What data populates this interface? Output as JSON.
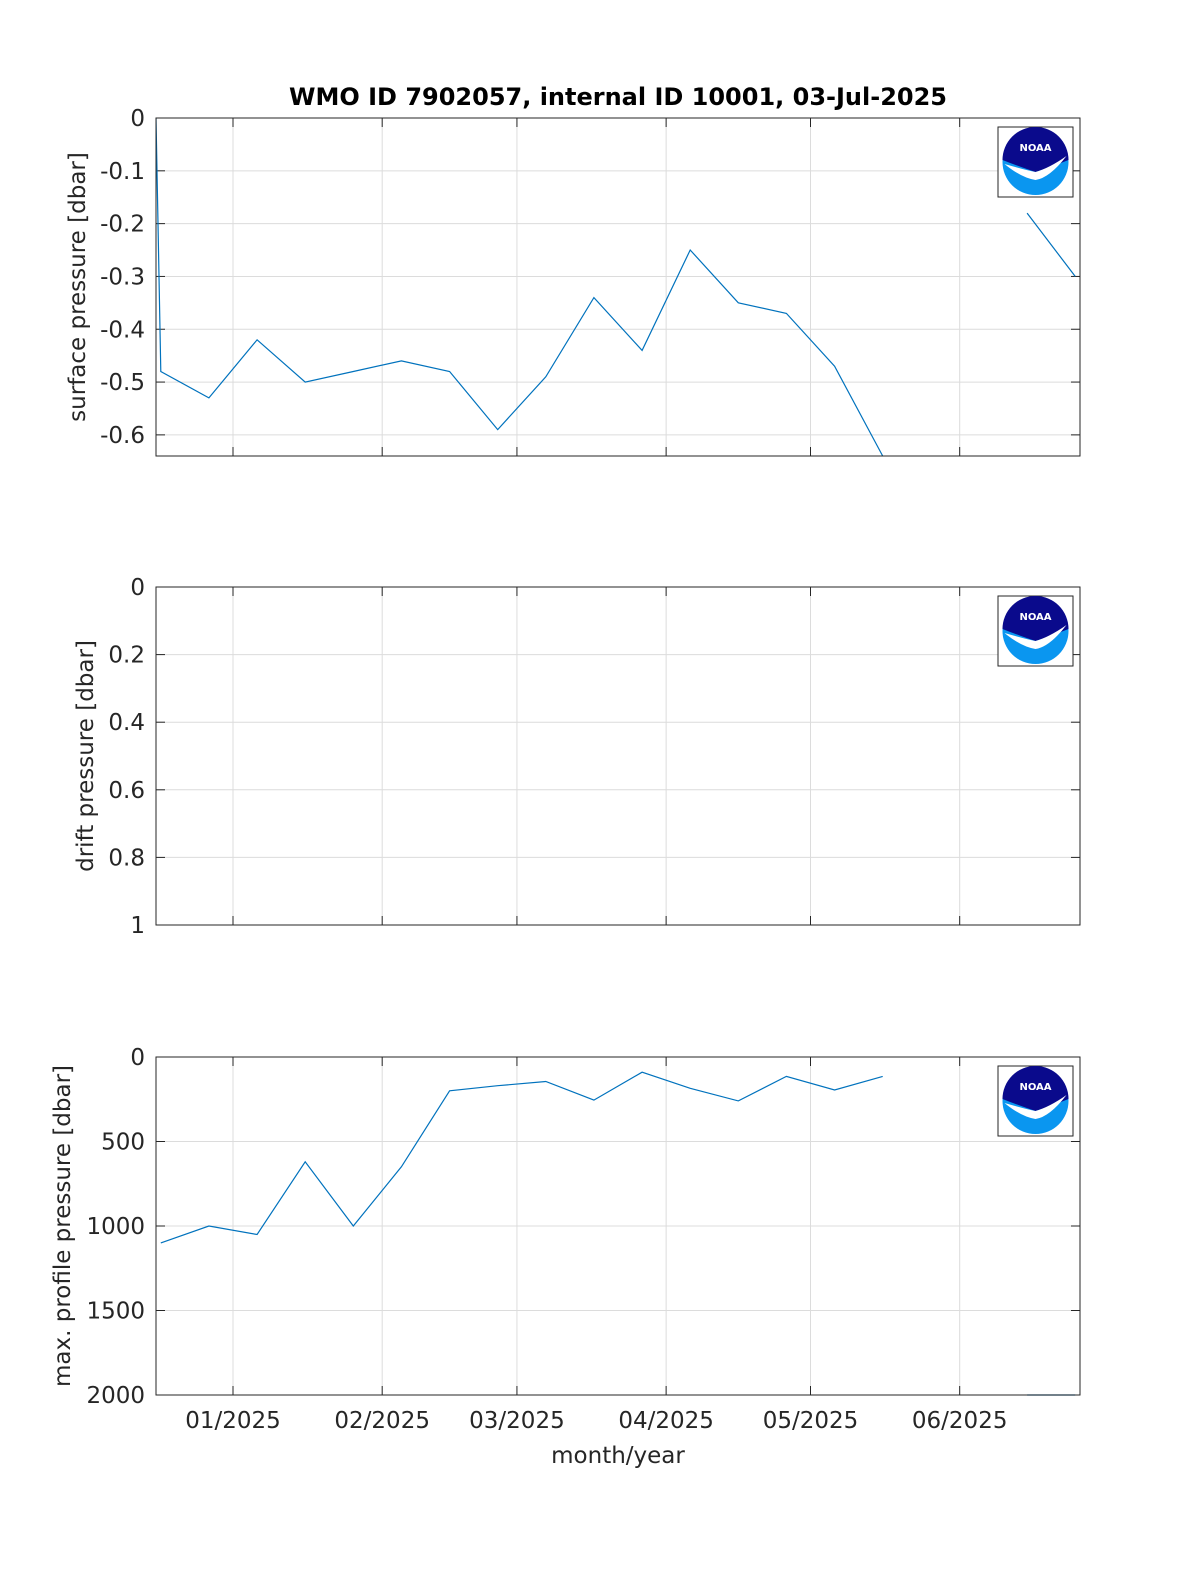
{
  "title": "WMO ID 7902057, internal ID 10001, 03-Jul-2025",
  "colors": {
    "series": "#0072BD",
    "axis": "#262626",
    "grid": "#dcdcdc",
    "noaa_dark": "#0a0a8c",
    "noaa_light": "#0a96f0"
  },
  "logo": {
    "text": "NOAA",
    "icon": "noaa-logo-icon"
  },
  "chart_data": [
    {
      "type": "line",
      "ylabel": "surface pressure [dbar]",
      "xlabel": "",
      "ylim": [
        -0.64,
        0
      ],
      "yticks": [
        0,
        -0.1,
        -0.2,
        -0.3,
        -0.4,
        -0.5,
        -0.6
      ],
      "ytick_labels": [
        "0",
        "-0.1",
        "-0.2",
        "-0.3",
        "-0.4",
        "-0.5",
        "-0.6"
      ],
      "reversed": false,
      "grid": true,
      "series": [
        {
          "x": [
            "2024-12-16",
            "2024-12-17",
            "2024-12-27",
            "2025-01-06",
            "2025-01-16",
            "2025-01-26",
            "2025-02-05",
            "2025-02-15",
            "2025-02-25",
            "2025-03-07",
            "2025-03-17",
            "2025-03-27",
            "2025-04-06",
            "2025-04-16",
            "2025-04-26",
            "2025-05-06",
            "2025-05-16"
          ],
          "y": [
            0,
            -0.48,
            -0.53,
            -0.42,
            -0.5,
            -0.48,
            -0.46,
            -0.48,
            -0.59,
            -0.49,
            -0.34,
            -0.44,
            -0.25,
            -0.35,
            -0.37,
            -0.47,
            -0.64
          ]
        },
        {
          "x": [
            "2025-06-15",
            "2025-06-25"
          ],
          "y": [
            -0.18,
            -0.3
          ]
        }
      ]
    },
    {
      "type": "line",
      "ylabel": "drift pressure [dbar]",
      "xlabel": "",
      "ylim": [
        0,
        1
      ],
      "yticks": [
        0,
        0.2,
        0.4,
        0.6,
        0.8,
        1
      ],
      "ytick_labels": [
        "0",
        "0.2",
        "0.4",
        "0.6",
        "0.8",
        "1"
      ],
      "reversed": true,
      "grid": true,
      "series": []
    },
    {
      "type": "line",
      "ylabel": "max. profile pressure [dbar]",
      "xlabel": "month/year",
      "ylim": [
        0,
        2000
      ],
      "yticks": [
        0,
        500,
        1000,
        1500,
        2000
      ],
      "ytick_labels": [
        "0",
        "500",
        "1000",
        "1500",
        "2000"
      ],
      "reversed": true,
      "grid": true,
      "series": [
        {
          "x": [
            "2024-12-17",
            "2024-12-27",
            "2025-01-06",
            "2025-01-16",
            "2025-01-26",
            "2025-02-05",
            "2025-02-15",
            "2025-02-25",
            "2025-03-07",
            "2025-03-17",
            "2025-03-27",
            "2025-04-06",
            "2025-04-16",
            "2025-04-26",
            "2025-05-06",
            "2025-05-16"
          ],
          "y": [
            1100,
            1000,
            1050,
            620,
            1000,
            650,
            200,
            170,
            145,
            255,
            90,
            185,
            260,
            115,
            195,
            115
          ]
        },
        {
          "x": [
            "2025-06-15",
            "2025-06-25"
          ],
          "y": [
            2000,
            2000
          ]
        }
      ]
    }
  ],
  "x_axis": {
    "range": [
      "2024-12-16",
      "2025-06-26"
    ],
    "ticks": [
      "2025-01-01",
      "2025-02-01",
      "2025-03-01",
      "2025-04-01",
      "2025-05-01",
      "2025-06-01"
    ],
    "tick_labels": [
      "01/2025",
      "02/2025",
      "03/2025",
      "04/2025",
      "05/2025",
      "06/2025"
    ],
    "label": "month/year"
  }
}
